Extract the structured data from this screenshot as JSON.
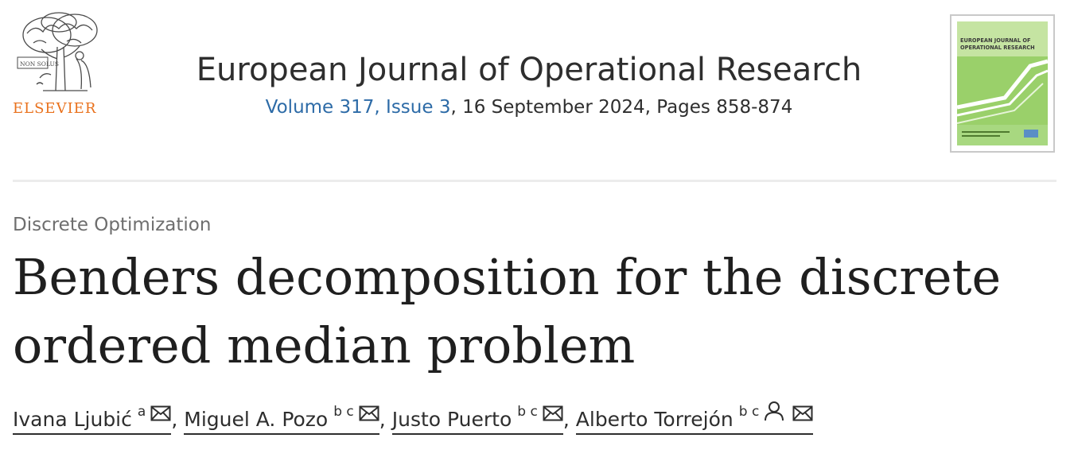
{
  "publisher": {
    "name": "ELSEVIER",
    "logo_motto": "NON SOLUS"
  },
  "journal": {
    "title": "European Journal of Operational Research",
    "issue_link": "Volume 317, Issue 3",
    "issue_rest": ", 16 September 2024, Pages 858-874"
  },
  "cover": {
    "line1": "EUROPEAN JOURNAL OF",
    "line2": "OPERATIONAL RESEARCH"
  },
  "article": {
    "section": "Discrete Optimization",
    "title_line1": "Benders decomposition for the discrete",
    "title_line2": "ordered median problem"
  },
  "authors": [
    {
      "name": "Ivana Ljubić",
      "affiliations": "a",
      "icons": [
        "mail-icon"
      ]
    },
    {
      "name": "Miguel A. Pozo",
      "affiliations": "b c",
      "icons": [
        "mail-icon"
      ]
    },
    {
      "name": "Justo Puerto",
      "affiliations": "b c",
      "icons": [
        "mail-icon"
      ]
    },
    {
      "name": "Alberto Torrejón",
      "affiliations": "b c",
      "icons": [
        "person-icon",
        "mail-icon"
      ]
    }
  ],
  "author_separator": ",",
  "colors": {
    "publisher_orange": "#e9711c",
    "link_blue": "#2d6ba7",
    "cover_green": "#9ad06a"
  }
}
